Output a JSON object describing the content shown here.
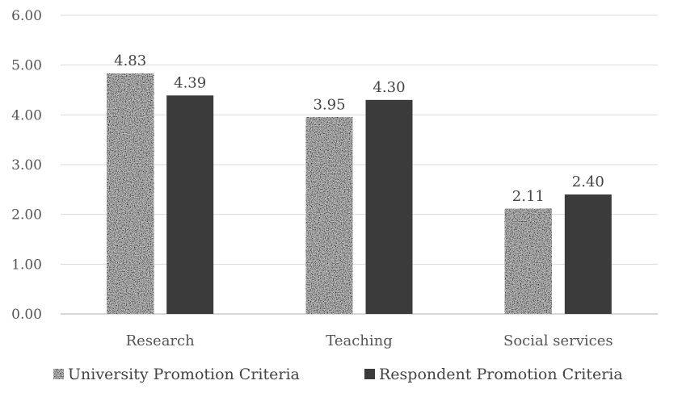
{
  "chart_data": {
    "type": "bar",
    "title": "",
    "xlabel": "",
    "ylabel": "",
    "categories": [
      "Research",
      "Teaching",
      "Social services"
    ],
    "series": [
      {
        "name": "University Promotion Criteria",
        "values": [
          4.83,
          3.95,
          2.11
        ],
        "pattern": "speckled-gray",
        "color": "#8c8c8c"
      },
      {
        "name": "Respondent Promotion Criteria",
        "values": [
          4.39,
          4.3,
          2.4
        ],
        "color": "#3b3b3b"
      }
    ],
    "ylim": [
      0,
      6
    ],
    "yticks": [
      "0.00",
      "1.00",
      "2.00",
      "3.00",
      "4.00",
      "5.00",
      "6.00"
    ],
    "grid": true,
    "legend": "bottom"
  }
}
